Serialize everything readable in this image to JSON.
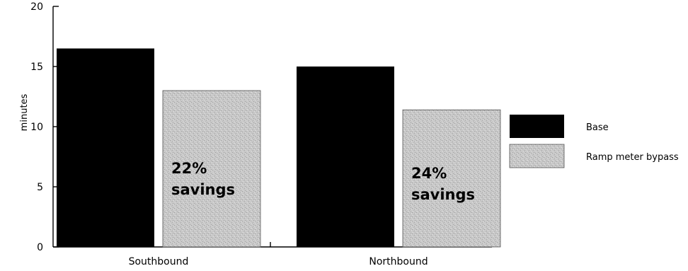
{
  "chart_data": {
    "type": "bar",
    "ylabel": "minutes",
    "ylim": [
      0,
      20
    ],
    "yticks": [
      0,
      5,
      10,
      15,
      20
    ],
    "categories": [
      "Southbound",
      "Northbound"
    ],
    "series": [
      {
        "name": "Base",
        "values": [
          16.5,
          15.0
        ]
      },
      {
        "name": "Ramp meter bypass",
        "values": [
          13.0,
          11.4
        ]
      }
    ],
    "annotations": [
      {
        "category": "Southbound",
        "series": "Ramp meter bypass",
        "lines": [
          "22%",
          "savings"
        ]
      },
      {
        "category": "Northbound",
        "series": "Ramp meter bypass",
        "lines": [
          "24%",
          "savings"
        ]
      }
    ],
    "legend_position": "right",
    "grid": false
  },
  "colors": {
    "base": "#000000",
    "bypass": "#c8c8c8",
    "axis": "#000000",
    "text": "#000000"
  }
}
